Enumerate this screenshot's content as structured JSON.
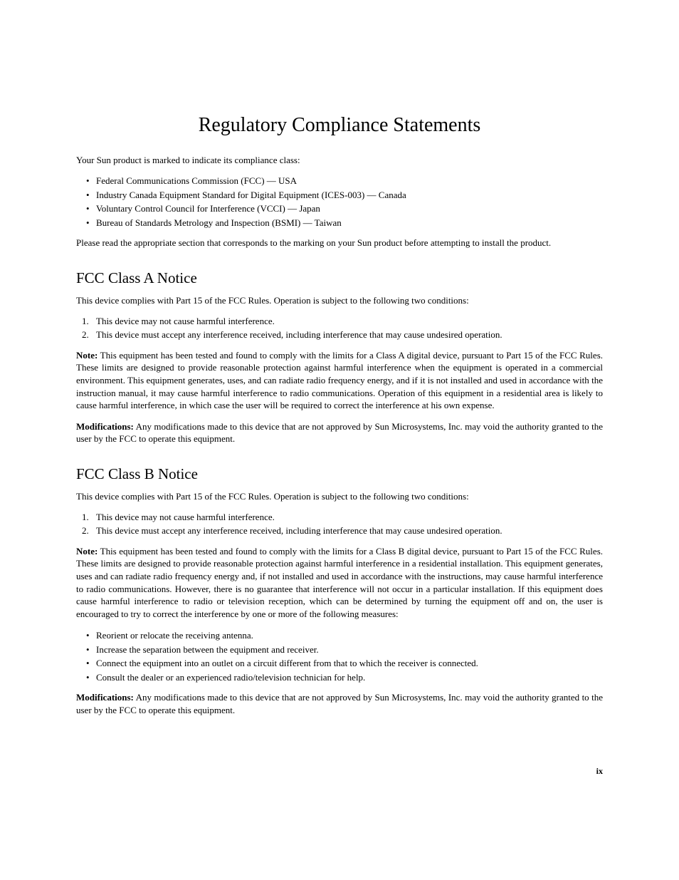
{
  "title": "Regulatory Compliance Statements",
  "intro": "Your Sun product is marked to indicate its compliance class:",
  "compliance_bullets": [
    "Federal Communications Commission (FCC) — USA",
    "Industry Canada Equipment Standard for Digital Equipment (ICES-003) — Canada",
    "Voluntary Control Council for Interference (VCCI) — Japan",
    "Bureau of Standards Metrology and Inspection (BSMI) — Taiwan"
  ],
  "intro_para2": "Please read the appropriate section that corresponds to the marking on your Sun product before attempting to install the product.",
  "section_a": {
    "title": "FCC Class A Notice",
    "intro": "This device complies with Part 15 of the FCC Rules. Operation is subject to the following two conditions:",
    "conditions": [
      "This device may not cause harmful interference.",
      "This device must accept any interference received, including interference that may cause undesired operation."
    ],
    "note_label": "Note:",
    "note_text": " This equipment has been tested and found to comply with the limits for a Class A digital device, pursuant to Part 15 of the FCC Rules. These limits are designed to provide reasonable protection against harmful interference when the equipment is operated in a commercial environment. This equipment generates, uses, and can radiate radio frequency energy, and if it is not installed and used in accordance with the instruction manual, it may cause harmful interference to radio communications. Operation of this equipment in a residential area is likely to cause harmful interference, in which case the user will be required to correct the interference at his own expense.",
    "mod_label": "Modifications:",
    "mod_text": " Any modifications made to this device that are not approved by Sun Microsystems, Inc. may void the authority granted to the user by the FCC to operate this equipment."
  },
  "section_b": {
    "title": "FCC Class B Notice",
    "intro": "This device complies with Part 15 of the FCC Rules. Operation is subject to the following two conditions:",
    "conditions": [
      "This device may not cause harmful interference.",
      "This device must accept any interference received, including interference that may cause undesired operation."
    ],
    "note_label": "Note:",
    "note_text": " This equipment has been tested and found to comply with the limits for a Class B digital device, pursuant to Part 15 of the FCC Rules. These limits are designed to provide reasonable protection against harmful interference in a residential installation. This equipment generates, uses and can radiate radio frequency energy and, if not installed and used in accordance with the instructions, may cause harmful interference to radio communications. However, there is no guarantee that interference will not occur in a particular installation. If this equipment does cause harmful interference to radio or television reception, which can be determined by turning the equipment off and on, the user is encouraged to try to correct the interference by one or more of the following measures:",
    "measures": [
      "Reorient or relocate the receiving antenna.",
      "Increase the separation between the equipment and receiver.",
      "Connect the equipment into an outlet on a circuit different from that to which the receiver is connected.",
      "Consult the dealer or an experienced radio/television technician for help."
    ],
    "mod_label": "Modifications:",
    "mod_text": " Any modifications made to this device that are not approved by Sun Microsystems, Inc. may void the authority granted to the user by the FCC to operate this equipment."
  },
  "page_number": "ix"
}
